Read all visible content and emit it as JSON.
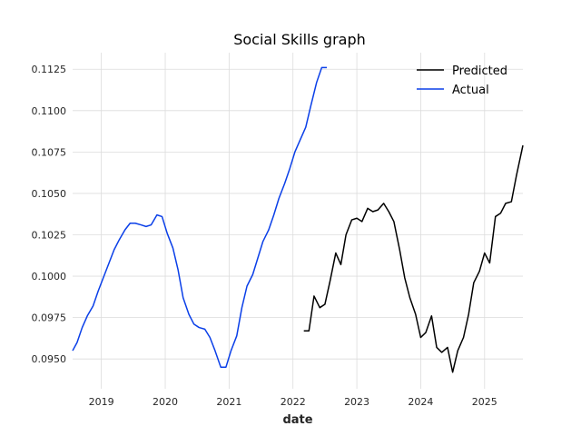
{
  "chart_data": {
    "type": "line",
    "title": "Social Skills graph",
    "xlabel": "date",
    "ylabel": "",
    "xlim": [
      2018.55,
      2025.6
    ],
    "ylim": [
      0.0932,
      0.1135
    ],
    "x_ticks": [
      2019,
      2020,
      2021,
      2022,
      2023,
      2024,
      2025
    ],
    "x_tick_labels": [
      "2019",
      "2020",
      "2021",
      "2022",
      "2023",
      "2024",
      "2025"
    ],
    "y_ticks": [
      0.095,
      0.0975,
      0.1,
      0.1025,
      0.105,
      0.1075,
      0.11,
      0.1125
    ],
    "y_tick_labels": [
      "0.0950",
      "0.0975",
      "0.1000",
      "0.1025",
      "0.1050",
      "0.1075",
      "0.1100",
      "0.1125"
    ],
    "grid": true,
    "legend_position": "top-right",
    "series": [
      {
        "name": "Predicted",
        "color": "#000000",
        "x": [
          2022.17,
          2022.25,
          2022.33,
          2022.42,
          2022.5,
          2022.58,
          2022.67,
          2022.75,
          2022.83,
          2022.92,
          2023.0,
          2023.08,
          2023.17,
          2023.25,
          2023.33,
          2023.42,
          2023.5,
          2023.58,
          2023.67,
          2023.75,
          2023.83,
          2023.92,
          2024.0,
          2024.08,
          2024.17,
          2024.25,
          2024.33,
          2024.42,
          2024.5,
          2024.58,
          2024.67,
          2024.75,
          2024.83,
          2024.92,
          2025.0,
          2025.08,
          2025.17,
          2025.25,
          2025.33,
          2025.42,
          2025.5,
          2025.6
        ],
        "y": [
          0.0967,
          0.0967,
          0.0988,
          0.0981,
          0.0983,
          0.0997,
          0.1014,
          0.1007,
          0.1025,
          0.1034,
          0.1035,
          0.1033,
          0.1041,
          0.1039,
          0.104,
          0.1044,
          0.1039,
          0.1033,
          0.1016,
          0.0999,
          0.0987,
          0.0977,
          0.0963,
          0.0966,
          0.0976,
          0.0957,
          0.0954,
          0.0957,
          0.0942,
          0.0955,
          0.0963,
          0.0977,
          0.0996,
          0.1003,
          0.1014,
          0.1008,
          0.1036,
          0.1038,
          0.1044,
          0.1045,
          0.1061,
          0.1079
        ]
      },
      {
        "name": "Actual",
        "color": "#0a3fe8",
        "x": [
          2018.55,
          2018.62,
          2018.7,
          2018.78,
          2018.87,
          2018.95,
          2019.03,
          2019.12,
          2019.2,
          2019.28,
          2019.37,
          2019.45,
          2019.53,
          2019.62,
          2019.7,
          2019.78,
          2019.87,
          2019.95,
          2020.03,
          2020.12,
          2020.2,
          2020.28,
          2020.37,
          2020.45,
          2020.53,
          2020.62,
          2020.7,
          2020.78,
          2020.87,
          2020.95,
          2021.03,
          2021.12,
          2021.2,
          2021.28,
          2021.37,
          2021.45,
          2021.53,
          2021.62,
          2021.7,
          2021.78,
          2021.87,
          2021.95,
          2022.03,
          2022.12,
          2022.2,
          2022.28,
          2022.37,
          2022.45,
          2022.53
        ],
        "y": [
          0.0955,
          0.096,
          0.0969,
          0.0976,
          0.0982,
          0.0991,
          0.0999,
          0.1008,
          0.1016,
          0.1022,
          0.1028,
          0.1032,
          0.1032,
          0.1031,
          0.103,
          0.1031,
          0.1037,
          0.1036,
          0.1026,
          0.1017,
          0.1004,
          0.0987,
          0.0977,
          0.0971,
          0.0969,
          0.0968,
          0.0963,
          0.0955,
          0.0945,
          0.0945,
          0.0955,
          0.0964,
          0.0981,
          0.0994,
          0.1001,
          0.1011,
          0.1021,
          0.1028,
          0.1037,
          0.1047,
          0.1056,
          0.1065,
          0.1075,
          0.1083,
          0.109,
          0.1103,
          0.1117,
          0.1126,
          0.1126
        ]
      }
    ]
  }
}
